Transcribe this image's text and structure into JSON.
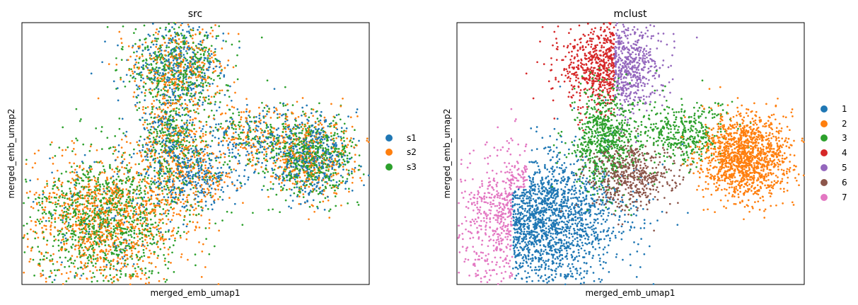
{
  "chart_data": [
    {
      "type": "scatter",
      "title": "src",
      "xlabel": "merged_emb_umap1",
      "ylabel": "merged_emb_umap2",
      "xlim": [
        -6.3,
        10.6
      ],
      "ylim": [
        -4.6,
        11.8
      ],
      "grid": false,
      "legend_position": "right",
      "series": [
        {
          "name": "s1",
          "color": "#1f77b4"
        },
        {
          "name": "s2",
          "color": "#ff7f0e"
        },
        {
          "name": "s3",
          "color": "#2ca02c"
        }
      ],
      "regions_note": "approximate data-space extents of point clouds",
      "mix_by_region": {
        "left_blob": {
          "s1": 0.06,
          "s2": 0.47,
          "s3": 0.47
        },
        "center": {
          "s1": 0.3,
          "s2": 0.3,
          "s3": 0.4
        },
        "top_blob": {
          "s1": 0.3,
          "s2": 0.3,
          "s3": 0.4
        },
        "center_bottom": {
          "s1": 0.55,
          "s2": 0.35,
          "s3": 0.1
        },
        "bridge": {
          "s1": 0.35,
          "s2": 0.35,
          "s3": 0.3
        },
        "right_blob": {
          "s1": 0.33,
          "s2": 0.27,
          "s3": 0.4
        }
      }
    },
    {
      "type": "scatter",
      "title": "mclust",
      "xlabel": "merged_emb_umap1",
      "ylabel": "merged_emb_umap2",
      "xlim": [
        -6.3,
        10.6
      ],
      "ylim": [
        -4.6,
        11.8
      ],
      "grid": false,
      "legend_position": "right",
      "series": [
        {
          "name": "1",
          "color": "#1f77b4"
        },
        {
          "name": "2",
          "color": "#ff7f0e"
        },
        {
          "name": "3",
          "color": "#2ca02c"
        },
        {
          "name": "4",
          "color": "#d62728"
        },
        {
          "name": "5",
          "color": "#9467bd"
        },
        {
          "name": "6",
          "color": "#8c564b"
        },
        {
          "name": "7",
          "color": "#e377c2"
        }
      ]
    }
  ],
  "clusters": [
    {
      "id": "left_blob",
      "cx": -2.2,
      "cy": -0.6,
      "sx": 1.9,
      "sy": 2.2,
      "n": 2300
    },
    {
      "id": "top_blob",
      "cx": 1.3,
      "cy": 9.0,
      "sx": 1.2,
      "sy": 1.3,
      "n": 1100
    },
    {
      "id": "center",
      "cx": 0.9,
      "cy": 4.5,
      "sx": 0.8,
      "sy": 1.6,
      "n": 700
    },
    {
      "id": "center_bottom",
      "cx": 2.3,
      "cy": 2.2,
      "sx": 1.0,
      "sy": 1.0,
      "n": 500
    },
    {
      "id": "bridge",
      "cx": 4.8,
      "cy": 5.0,
      "sx": 1.0,
      "sy": 1.0,
      "n": 400
    },
    {
      "id": "right_blob",
      "cx": 7.8,
      "cy": 3.4,
      "sx": 1.1,
      "sy": 1.3,
      "n": 1400
    }
  ],
  "left_panel": {
    "title": "src",
    "xlabel": "merged_emb_umap1",
    "ylabel": "merged_emb_umap2",
    "legend": [
      "s1",
      "s2",
      "s3"
    ]
  },
  "right_panel": {
    "title": "mclust",
    "xlabel": "merged_emb_umap1",
    "ylabel": "merged_emb_umap2",
    "legend": [
      "1",
      "2",
      "3",
      "4",
      "5",
      "6",
      "7"
    ]
  }
}
